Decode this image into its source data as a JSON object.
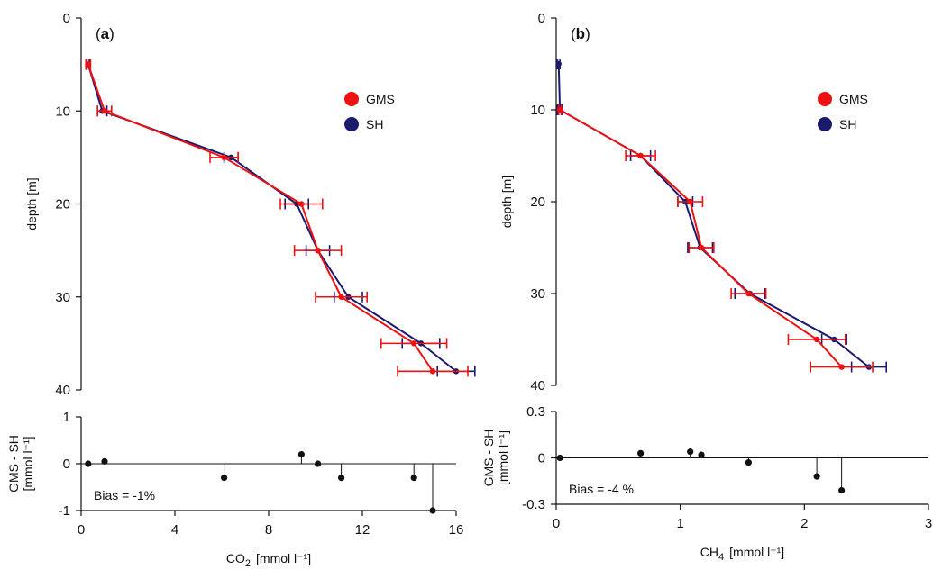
{
  "chart_data": [
    {
      "id": "a",
      "type": "line",
      "panel_label": "a",
      "ylabel": "depth [m]",
      "ylim": [
        40,
        0
      ],
      "yticks": [
        0,
        10,
        20,
        30,
        40
      ],
      "xlim": [
        0,
        16
      ],
      "legend_position": "right",
      "series": [
        {
          "name": "GMS",
          "color": "#ee1111",
          "depth": [
            5,
            10,
            15,
            20,
            25,
            30,
            35,
            38
          ],
          "x": [
            0.3,
            1.0,
            6.1,
            9.4,
            10.1,
            11.1,
            14.2,
            15.0
          ],
          "xerr": [
            0.1,
            0.3,
            0.6,
            0.9,
            1.0,
            1.1,
            1.4,
            1.5
          ]
        },
        {
          "name": "SH",
          "color": "#1a1a6e",
          "depth": [
            5,
            10,
            15,
            20,
            25,
            30,
            35,
            38
          ],
          "x": [
            0.3,
            0.9,
            6.4,
            9.2,
            10.1,
            11.4,
            14.5,
            16.0
          ],
          "xerr": [
            0.05,
            0.2,
            0.3,
            0.5,
            0.5,
            0.6,
            0.8,
            0.8
          ]
        }
      ]
    },
    {
      "id": "b",
      "type": "line",
      "panel_label": "b",
      "ylabel": "depth [m]",
      "ylim": [
        40,
        0
      ],
      "yticks": [
        0,
        10,
        20,
        30,
        40
      ],
      "xlim": [
        0,
        3
      ],
      "legend_position": "right",
      "series": [
        {
          "name": "GMS",
          "color": "#ee1111",
          "depth": [
            10,
            15,
            20,
            25,
            30,
            35,
            38
          ],
          "x": [
            0.03,
            0.68,
            1.08,
            1.17,
            1.55,
            2.1,
            2.3
          ],
          "xerr": [
            0.01,
            0.12,
            0.1,
            0.1,
            0.14,
            0.23,
            0.25
          ]
        },
        {
          "name": "SH",
          "color": "#1a1a6e",
          "depth": [
            5,
            10,
            15,
            20,
            25,
            30,
            35,
            38
          ],
          "x": [
            0.02,
            0.03,
            0.68,
            1.04,
            1.16,
            1.56,
            2.24,
            2.52
          ],
          "xerr": [
            0.01,
            0.02,
            0.08,
            0.06,
            0.1,
            0.12,
            0.1,
            0.14
          ]
        }
      ]
    },
    {
      "id": "a-diff",
      "type": "scatter",
      "ylabel": "GMS - SH",
      "ylabel_unit": "[mmol l⁻¹]",
      "xlabel_main": "CO",
      "xlabel_sub": "2",
      "xlabel_unit": "[mmol l⁻¹]",
      "xlim": [
        0,
        16
      ],
      "xticks": [
        0,
        4,
        8,
        12,
        16
      ],
      "ylim": [
        -1,
        1
      ],
      "yticks": [
        -1,
        0,
        1
      ],
      "annotation": "Bias = -1%",
      "x": [
        0.3,
        1.0,
        6.1,
        9.4,
        10.1,
        11.1,
        14.2,
        15.0
      ],
      "y": [
        0.0,
        0.05,
        -0.3,
        0.2,
        0.0,
        -0.3,
        -0.3,
        -1.0
      ]
    },
    {
      "id": "b-diff",
      "type": "scatter",
      "ylabel": "GMS - SH",
      "ylabel_unit": "[mmol l⁻¹]",
      "xlabel_main": "CH",
      "xlabel_sub": "4",
      "xlabel_unit": "[mmol l⁻¹]",
      "xlim": [
        0,
        3
      ],
      "xticks": [
        0,
        1,
        2,
        3
      ],
      "ylim": [
        -0.3,
        0.3
      ],
      "yticks": [
        -0.3,
        0,
        0.3
      ],
      "annotation": "Bias = -4 %",
      "x": [
        0.03,
        0.68,
        1.08,
        1.17,
        1.55,
        2.1,
        2.3
      ],
      "y": [
        0.0,
        0.03,
        0.04,
        0.02,
        -0.03,
        -0.12,
        -0.21
      ]
    }
  ]
}
